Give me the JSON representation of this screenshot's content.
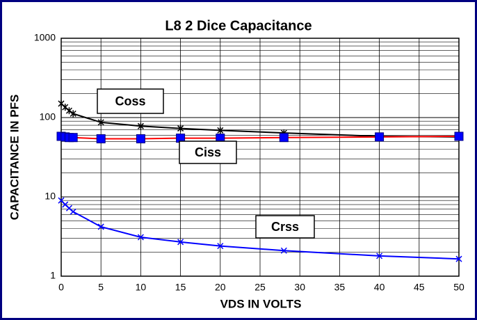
{
  "chart_data": {
    "type": "line",
    "title": "L8 2 Dice Capacitance",
    "x_label": "VDS IN VOLTS",
    "y_label": "CAPACITANCE IN PFS",
    "x": [
      0,
      0.5,
      1,
      1.5,
      5,
      10,
      15,
      20,
      28,
      40,
      50
    ],
    "series": [
      {
        "name": "Coss",
        "color": "#000000",
        "marker": "star",
        "marker_color": "#000000",
        "values": [
          150,
          135,
          122,
          112,
          87,
          78,
          73,
          69,
          64,
          58,
          57
        ]
      },
      {
        "name": "Ciss",
        "color": "#ff0000",
        "marker": "square",
        "marker_color": "#0000ff",
        "values": [
          58,
          57,
          56,
          56,
          54,
          54,
          55,
          55,
          56,
          57,
          58
        ]
      },
      {
        "name": "Crss",
        "color": "#0000ff",
        "marker": "x",
        "marker_color": "#0000ff",
        "values": [
          9,
          8,
          7.2,
          6.5,
          4.2,
          3.1,
          2.7,
          2.4,
          2.1,
          1.8,
          1.65
        ]
      }
    ],
    "xlim": [
      0,
      50
    ],
    "xticks": [
      0,
      5,
      10,
      15,
      20,
      25,
      30,
      35,
      40,
      45,
      50
    ],
    "ylim": [
      1,
      1000
    ],
    "yticks": [
      1,
      10,
      100,
      1000
    ],
    "log_y": true,
    "grid": true
  }
}
